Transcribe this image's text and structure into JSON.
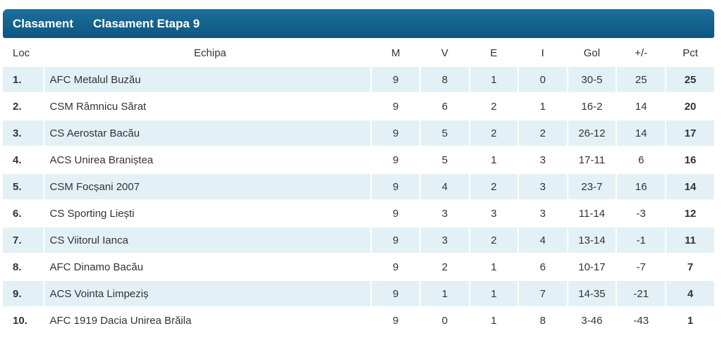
{
  "header": {
    "tabs": [
      "Clasament",
      "Clasament Etapa 9"
    ]
  },
  "table": {
    "columns": [
      "Loc",
      "Echipa",
      "M",
      "V",
      "E",
      "I",
      "Gol",
      "+/-",
      "Pct"
    ],
    "rows": [
      [
        "1.",
        "AFC Metalul Buzău",
        "9",
        "8",
        "1",
        "0",
        "30-5",
        "25",
        "25"
      ],
      [
        "2.",
        "CSM Râmnicu Sărat",
        "9",
        "6",
        "2",
        "1",
        "16-2",
        "14",
        "20"
      ],
      [
        "3.",
        "CS Aerostar Bacău",
        "9",
        "5",
        "2",
        "2",
        "26-12",
        "14",
        "17"
      ],
      [
        "4.",
        "ACS Unirea Braniștea",
        "9",
        "5",
        "1",
        "3",
        "17-11",
        "6",
        "16"
      ],
      [
        "5.",
        "CSM Focșani 2007",
        "9",
        "4",
        "2",
        "3",
        "23-7",
        "16",
        "14"
      ],
      [
        "6.",
        "CS Sporting Liești",
        "9",
        "3",
        "3",
        "3",
        "11-14",
        "-3",
        "12"
      ],
      [
        "7.",
        "CS Viitorul Ianca",
        "9",
        "3",
        "2",
        "4",
        "13-14",
        "-1",
        "11"
      ],
      [
        "8.",
        "AFC Dinamo Bacău",
        "9",
        "2",
        "1",
        "6",
        "10-17",
        "-7",
        "7"
      ],
      [
        "9.",
        "ACS Vointa Limpeziș",
        "9",
        "1",
        "1",
        "7",
        "14-35",
        "-21",
        "4"
      ],
      [
        "10.",
        "AFC 1919 Dacia Unirea Brăila",
        "9",
        "0",
        "1",
        "8",
        "3-46",
        "-43",
        "1"
      ]
    ]
  }
}
